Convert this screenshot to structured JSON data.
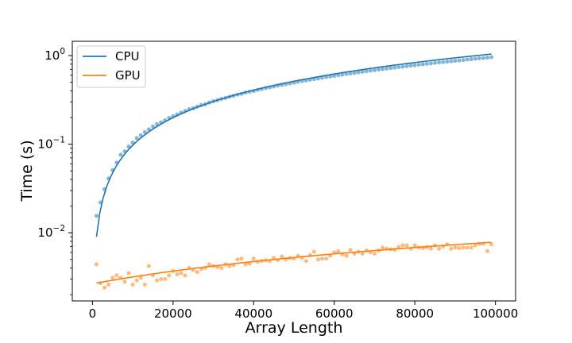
{
  "chart_data": {
    "type": "scatter",
    "title": "",
    "xlabel": "Array Length",
    "ylabel": "Time (s)",
    "xlim": [
      -5000,
      105000
    ],
    "ylim": [
      0.0017,
      1.45
    ],
    "yscale": "log",
    "grid": false,
    "legend_position": "top-left",
    "x_ticks": [
      0,
      20000,
      40000,
      60000,
      80000,
      100000
    ],
    "x_tick_labels": [
      "0",
      "20000",
      "40000",
      "60000",
      "80000",
      "100000"
    ],
    "y_ticks": [
      0.01,
      0.1,
      1
    ],
    "y_tick_base": "10",
    "y_tick_exponents": [
      "−2",
      "−1",
      "0"
    ],
    "series": [
      {
        "name": "CPU",
        "color": "#1f77b4",
        "fit": {
          "x": [
            1000,
            99000
          ],
          "a": 0.0001,
          "b": 0.2,
          "c": 2.0
        },
        "points": [
          [
            1000,
            0.0155
          ],
          [
            2000,
            0.022
          ],
          [
            3000,
            0.031
          ],
          [
            4000,
            0.041
          ],
          [
            5000,
            0.051
          ],
          [
            6000,
            0.062
          ],
          [
            7000,
            0.076
          ],
          [
            8000,
            0.083
          ],
          [
            9000,
            0.094
          ],
          [
            10000,
            0.104
          ],
          [
            11000,
            0.117
          ],
          [
            12000,
            0.126
          ],
          [
            13000,
            0.137
          ],
          [
            14000,
            0.147
          ],
          [
            15000,
            0.158
          ],
          [
            16000,
            0.168
          ],
          [
            17000,
            0.176
          ],
          [
            18000,
            0.186
          ],
          [
            19000,
            0.198
          ],
          [
            20000,
            0.207
          ],
          [
            21000,
            0.216
          ],
          [
            22000,
            0.227
          ],
          [
            23000,
            0.237
          ],
          [
            24000,
            0.248
          ],
          [
            25000,
            0.255
          ],
          [
            26000,
            0.265
          ],
          [
            27000,
            0.275
          ],
          [
            28000,
            0.283
          ],
          [
            29000,
            0.295
          ],
          [
            30000,
            0.305
          ],
          [
            31000,
            0.313
          ],
          [
            32000,
            0.324
          ],
          [
            33000,
            0.332
          ],
          [
            34000,
            0.343
          ],
          [
            35000,
            0.352
          ],
          [
            36000,
            0.362
          ],
          [
            37000,
            0.37
          ],
          [
            38000,
            0.382
          ],
          [
            39000,
            0.391
          ],
          [
            40000,
            0.398
          ],
          [
            41000,
            0.41
          ],
          [
            42000,
            0.418
          ],
          [
            43000,
            0.43
          ],
          [
            44000,
            0.438
          ],
          [
            45000,
            0.447
          ],
          [
            46000,
            0.458
          ],
          [
            47000,
            0.466
          ],
          [
            48000,
            0.476
          ],
          [
            49000,
            0.486
          ],
          [
            50000,
            0.494
          ],
          [
            51000,
            0.505
          ],
          [
            52000,
            0.515
          ],
          [
            53000,
            0.523
          ],
          [
            54000,
            0.533
          ],
          [
            55000,
            0.543
          ],
          [
            56000,
            0.552
          ],
          [
            57000,
            0.561
          ],
          [
            58000,
            0.571
          ],
          [
            59000,
            0.58
          ],
          [
            60000,
            0.59
          ],
          [
            61000,
            0.6
          ],
          [
            62000,
            0.608
          ],
          [
            63000,
            0.619
          ],
          [
            64000,
            0.628
          ],
          [
            65000,
            0.637
          ],
          [
            66000,
            0.647
          ],
          [
            67000,
            0.656
          ],
          [
            68000,
            0.666
          ],
          [
            69000,
            0.676
          ],
          [
            70000,
            0.684
          ],
          [
            71000,
            0.695
          ],
          [
            72000,
            0.703
          ],
          [
            73000,
            0.713
          ],
          [
            74000,
            0.723
          ],
          [
            75000,
            0.731
          ],
          [
            76000,
            0.742
          ],
          [
            77000,
            0.75
          ],
          [
            78000,
            0.76
          ],
          [
            79000,
            0.77
          ],
          [
            80000,
            0.778
          ],
          [
            81000,
            0.789
          ],
          [
            82000,
            0.797
          ],
          [
            83000,
            0.808
          ],
          [
            84000,
            0.816
          ],
          [
            85000,
            0.826
          ],
          [
            86000,
            0.836
          ],
          [
            87000,
            0.844
          ],
          [
            88000,
            0.855
          ],
          [
            89000,
            0.863
          ],
          [
            90000,
            0.873
          ],
          [
            91000,
            0.882
          ],
          [
            92000,
            0.891
          ],
          [
            93000,
            0.902
          ],
          [
            94000,
            0.91
          ],
          [
            95000,
            0.92
          ],
          [
            96000,
            0.93
          ],
          [
            97000,
            0.938
          ],
          [
            98000,
            0.948
          ],
          [
            99000,
            0.957
          ]
        ]
      },
      {
        "name": "GPU",
        "color": "#ff7f0e",
        "fit": {
          "x": [
            1000,
            99000
          ],
          "y0": 0.0027,
          "y1": 0.0078
        },
        "points": [
          [
            1000,
            0.0044
          ],
          [
            2000,
            0.0027
          ],
          [
            3000,
            0.0024
          ],
          [
            4000,
            0.0026
          ],
          [
            5000,
            0.0031
          ],
          [
            6000,
            0.0033
          ],
          [
            7000,
            0.0031
          ],
          [
            8000,
            0.0028
          ],
          [
            9000,
            0.0035
          ],
          [
            10000,
            0.0026
          ],
          [
            11000,
            0.0029
          ],
          [
            12000,
            0.0031
          ],
          [
            13000,
            0.0026
          ],
          [
            14000,
            0.0042
          ],
          [
            15000,
            0.0033
          ],
          [
            16000,
            0.0029
          ],
          [
            17000,
            0.003
          ],
          [
            18000,
            0.003
          ],
          [
            19000,
            0.0033
          ],
          [
            20000,
            0.0037
          ],
          [
            21000,
            0.0034
          ],
          [
            22000,
            0.0035
          ],
          [
            23000,
            0.0033
          ],
          [
            24000,
            0.004
          ],
          [
            25000,
            0.0038
          ],
          [
            26000,
            0.0036
          ],
          [
            27000,
            0.0039
          ],
          [
            28000,
            0.004
          ],
          [
            29000,
            0.0044
          ],
          [
            30000,
            0.0042
          ],
          [
            31000,
            0.0041
          ],
          [
            32000,
            0.004
          ],
          [
            33000,
            0.0044
          ],
          [
            34000,
            0.0042
          ],
          [
            35000,
            0.0043
          ],
          [
            36000,
            0.005
          ],
          [
            37000,
            0.0051
          ],
          [
            38000,
            0.0044
          ],
          [
            39000,
            0.0045
          ],
          [
            40000,
            0.0051
          ],
          [
            41000,
            0.0047
          ],
          [
            42000,
            0.0048
          ],
          [
            43000,
            0.0049
          ],
          [
            44000,
            0.0048
          ],
          [
            45000,
            0.0052
          ],
          [
            46000,
            0.0049
          ],
          [
            47000,
            0.0054
          ],
          [
            48000,
            0.005
          ],
          [
            49000,
            0.0052
          ],
          [
            50000,
            0.0051
          ],
          [
            51000,
            0.0055
          ],
          [
            52000,
            0.0052
          ],
          [
            53000,
            0.0048
          ],
          [
            54000,
            0.0056
          ],
          [
            55000,
            0.0061
          ],
          [
            56000,
            0.005
          ],
          [
            57000,
            0.0051
          ],
          [
            58000,
            0.0051
          ],
          [
            59000,
            0.0055
          ],
          [
            60000,
            0.006
          ],
          [
            61000,
            0.0062
          ],
          [
            62000,
            0.0057
          ],
          [
            63000,
            0.0055
          ],
          [
            64000,
            0.0064
          ],
          [
            65000,
            0.0058
          ],
          [
            66000,
            0.0061
          ],
          [
            67000,
            0.0058
          ],
          [
            68000,
            0.0063
          ],
          [
            69000,
            0.006
          ],
          [
            70000,
            0.0058
          ],
          [
            71000,
            0.0063
          ],
          [
            72000,
            0.0068
          ],
          [
            73000,
            0.0066
          ],
          [
            74000,
            0.0065
          ],
          [
            75000,
            0.0064
          ],
          [
            76000,
            0.0069
          ],
          [
            77000,
            0.0072
          ],
          [
            78000,
            0.0072
          ],
          [
            79000,
            0.0066
          ],
          [
            80000,
            0.0072
          ],
          [
            81000,
            0.0068
          ],
          [
            82000,
            0.0067
          ],
          [
            83000,
            0.0069
          ],
          [
            84000,
            0.0066
          ],
          [
            85000,
            0.0072
          ],
          [
            86000,
            0.0066
          ],
          [
            87000,
            0.007
          ],
          [
            88000,
            0.0074
          ],
          [
            89000,
            0.0066
          ],
          [
            90000,
            0.0068
          ],
          [
            91000,
            0.0067
          ],
          [
            92000,
            0.0068
          ],
          [
            93000,
            0.0068
          ],
          [
            94000,
            0.0068
          ],
          [
            95000,
            0.0072
          ],
          [
            96000,
            0.0075
          ],
          [
            97000,
            0.0075
          ],
          [
            98000,
            0.0062
          ],
          [
            99000,
            0.0074
          ]
        ]
      }
    ]
  }
}
